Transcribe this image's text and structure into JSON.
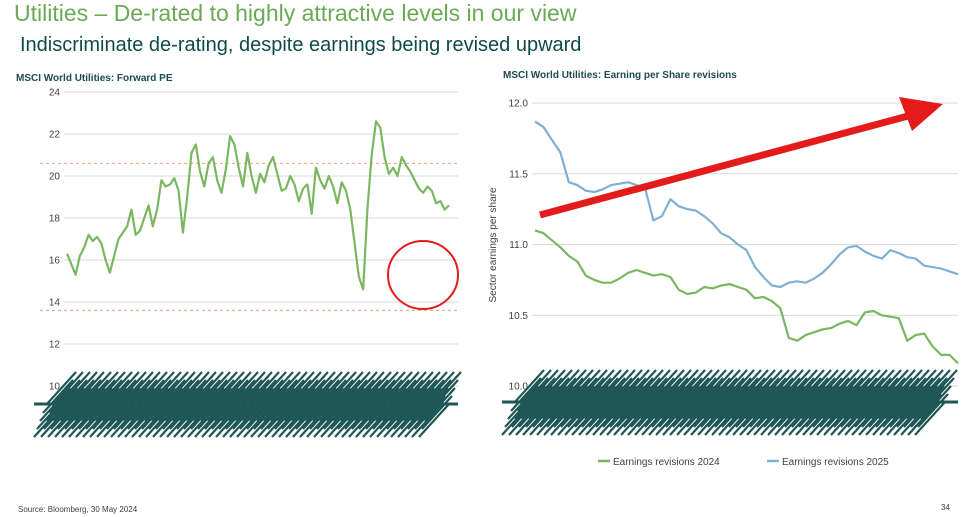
{
  "slide": {
    "title": "Utilities – De-rated to highly attractive levels in our view",
    "subtitle": "Indiscriminate de-rating, despite earnings being revised upward",
    "source": "Source: Bloomberg, 30 May 2024",
    "page_number": "34"
  },
  "colors": {
    "green_series": "#7bb661",
    "blue_series": "#7fb0d4",
    "dashed_band": "#f0a07a",
    "grid": "#d9d9d9",
    "red_annotation": "#e31b1b",
    "axis_label_mass": "#1e5656"
  },
  "chart_data": [
    {
      "type": "line",
      "title": "MSCI World Utilities: Forward PE",
      "xlabel": "",
      "ylabel": "",
      "ylim": [
        10,
        24
      ],
      "yticks": [
        10,
        12,
        14,
        16,
        18,
        20,
        22,
        24
      ],
      "grid": true,
      "reference_lines": [
        20.6,
        13.6
      ],
      "annotation": "red circle around recent lows",
      "series": [
        {
          "name": "Forward PE",
          "values": [
            16.3,
            15.8,
            15.3,
            16.2,
            16.6,
            17.2,
            16.9,
            17.1,
            16.8,
            16.0,
            15.4,
            16.2,
            17.0,
            17.3,
            17.6,
            18.4,
            17.2,
            17.4,
            18.0,
            18.6,
            17.6,
            18.4,
            19.8,
            19.5,
            19.6,
            19.9,
            19.3,
            17.3,
            19.0,
            21.1,
            21.5,
            20.2,
            19.5,
            20.6,
            20.9,
            19.8,
            19.2,
            20.3,
            21.9,
            21.5,
            20.4,
            19.5,
            21.1,
            20.0,
            19.2,
            20.1,
            19.7,
            20.5,
            20.9,
            20.1,
            19.3,
            19.4,
            20.0,
            19.6,
            18.8,
            19.4,
            19.6,
            18.2,
            20.4,
            19.8,
            19.4,
            20.0,
            19.5,
            18.7,
            19.7,
            19.3,
            18.4,
            16.8,
            15.2,
            14.6,
            18.4,
            21.0,
            22.6,
            22.3,
            20.9,
            20.1,
            20.4,
            20.0,
            20.9,
            20.5,
            20.2,
            19.8,
            19.4,
            19.2,
            19.5,
            19.3,
            18.7,
            18.8,
            18.4,
            18.6
          ],
          "color": "#7bb661"
        }
      ],
      "x_tick_labels": "dense daily date labels (illegible)"
    },
    {
      "type": "line",
      "title": "MSCI World Utilities: Earning per Share revisions",
      "xlabel": "",
      "ylabel": "Sector earnings per share",
      "ylim": [
        10.0,
        12.0
      ],
      "yticks": [
        "10.0",
        "10.5",
        "11.0",
        "11.5",
        "12.0"
      ],
      "grid": true,
      "annotation": "red arrow trending upward",
      "legend": [
        "Earnings revisions 2024",
        "Earnings revisions 2025"
      ],
      "series": [
        {
          "name": "Earnings revisions 2024",
          "values": [
            11.1,
            11.08,
            11.03,
            10.98,
            10.92,
            10.88,
            10.78,
            10.75,
            10.73,
            10.73,
            10.76,
            10.8,
            10.82,
            10.8,
            10.78,
            10.79,
            10.77,
            10.68,
            10.65,
            10.66,
            10.7,
            10.69,
            10.71,
            10.72,
            10.7,
            10.68,
            10.62,
            10.63,
            10.6,
            10.55,
            10.34,
            10.32,
            10.36,
            10.38,
            10.4,
            10.41,
            10.44,
            10.46,
            10.43,
            10.52,
            10.53,
            10.5,
            10.49,
            10.48,
            10.32,
            10.36,
            10.37,
            10.28,
            10.22,
            10.22,
            10.16
          ],
          "color": "#7bb661"
        },
        {
          "name": "Earnings revisions 2025",
          "values": [
            11.87,
            11.83,
            11.74,
            11.65,
            11.44,
            11.42,
            11.38,
            11.37,
            11.39,
            11.42,
            11.43,
            11.44,
            11.42,
            11.4,
            11.17,
            11.2,
            11.32,
            11.27,
            11.25,
            11.24,
            11.2,
            11.15,
            11.08,
            11.05,
            11.0,
            10.96,
            10.84,
            10.77,
            10.71,
            10.7,
            10.73,
            10.74,
            10.73,
            10.76,
            10.8,
            10.86,
            10.93,
            10.98,
            10.99,
            10.95,
            10.92,
            10.9,
            10.96,
            10.94,
            10.91,
            10.9,
            10.85,
            10.84,
            10.83,
            10.81,
            10.79
          ],
          "color": "#7fb0d4"
        }
      ],
      "x_tick_labels": "dense daily date labels (illegible)"
    }
  ]
}
